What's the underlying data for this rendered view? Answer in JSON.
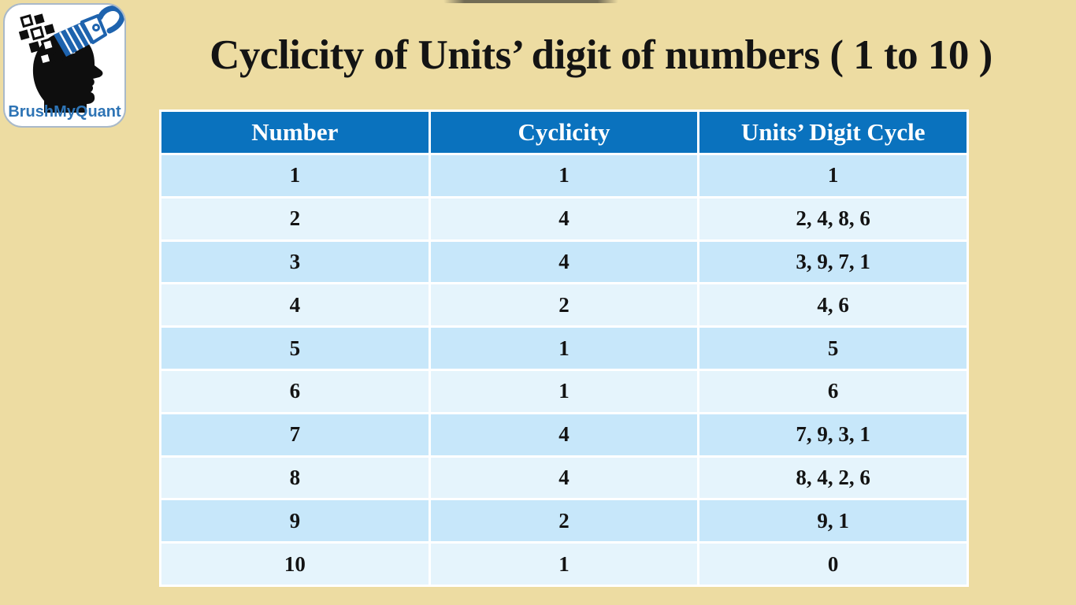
{
  "title": "Cyclicity of Units’ digit of numbers ( 1 to 10 )",
  "logo": {
    "brand": "BrushMyQuant"
  },
  "colors": {
    "background": "#EDDCA2",
    "title_text": "#141414",
    "header_bg": "#0A72BE",
    "header_text": "#FFFFFF",
    "row_dark": "#C7E7FA",
    "row_light": "#E5F4FC",
    "cell_text": "#131313",
    "brand_blue": "#2E74B5",
    "brush_blue": "#1E63AE"
  },
  "table": {
    "columns": [
      "Number",
      "Cyclicity",
      "Units’ Digit Cycle"
    ],
    "rows": [
      [
        "1",
        "1",
        "1"
      ],
      [
        "2",
        "4",
        "2, 4, 8, 6"
      ],
      [
        "3",
        "4",
        "3, 9, 7, 1"
      ],
      [
        "4",
        "2",
        "4, 6"
      ],
      [
        "5",
        "1",
        "5"
      ],
      [
        "6",
        "1",
        "6"
      ],
      [
        "7",
        "4",
        "7, 9, 3, 1"
      ],
      [
        "8",
        "4",
        "8, 4, 2, 6"
      ],
      [
        "9",
        "2",
        "9, 1"
      ],
      [
        "10",
        "1",
        "0"
      ]
    ]
  }
}
